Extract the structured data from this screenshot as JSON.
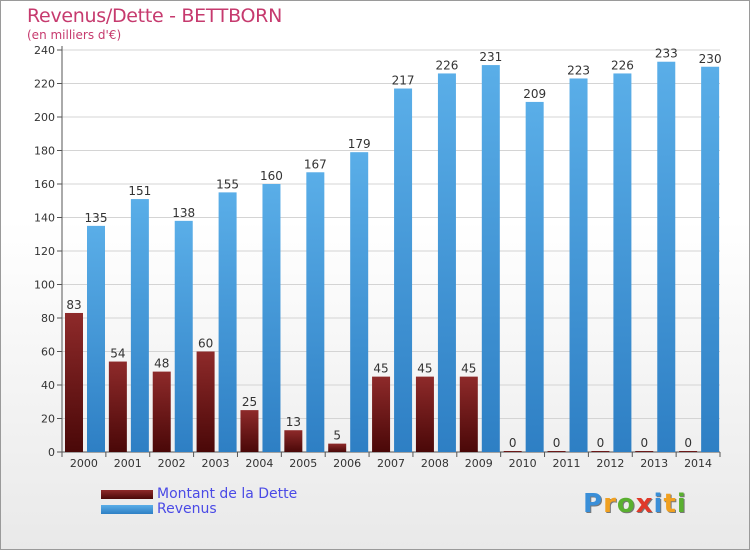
{
  "title": "Revenus/Dette - BETTBORN",
  "subtitle": "(en milliers d'€)",
  "logo": {
    "letters": [
      "P",
      "r",
      "o",
      "x",
      "i",
      "t",
      "i"
    ],
    "colors": [
      "#3a8fd8",
      "#f0a020",
      "#5ab030",
      "#e03a2a",
      "#3a8fd8",
      "#f0a020",
      "#5ab030"
    ]
  },
  "chart_data": {
    "type": "bar",
    "categories": [
      "2000",
      "2001",
      "2002",
      "2003",
      "2004",
      "2005",
      "2006",
      "2007",
      "2008",
      "2009",
      "2010",
      "2011",
      "2012",
      "2013",
      "2014"
    ],
    "series": [
      {
        "name": "Montant de la Dette",
        "color": "#7a1a1a",
        "values": [
          83,
          54,
          48,
          60,
          25,
          13,
          5,
          45,
          45,
          45,
          0,
          0,
          0,
          0,
          0
        ]
      },
      {
        "name": "Revenus",
        "color": "#4a9fe0",
        "values": [
          135,
          151,
          138,
          155,
          160,
          167,
          179,
          217,
          226,
          231,
          209,
          223,
          226,
          233,
          230
        ]
      }
    ],
    "ylim": [
      0,
      240
    ],
    "yticks": [
      0,
      20,
      40,
      60,
      80,
      100,
      120,
      140,
      160,
      180,
      200,
      220,
      240
    ],
    "grid": true,
    "legend_position": "bottom-left"
  }
}
